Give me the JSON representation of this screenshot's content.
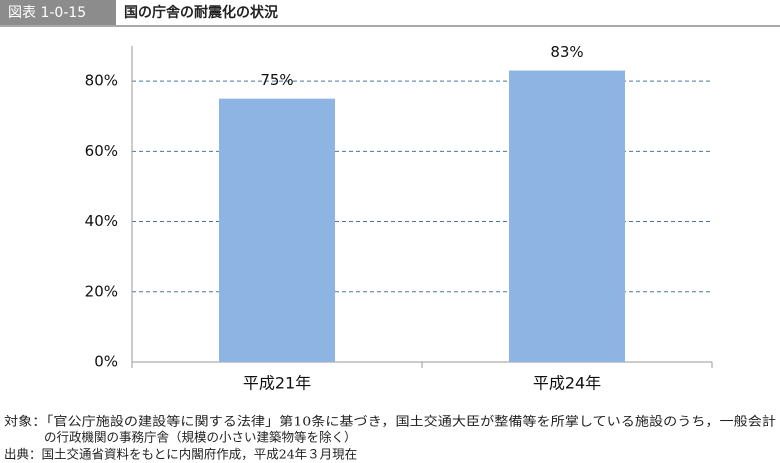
{
  "chart_data": {
    "type": "bar",
    "figure_number": "図表 1-0-15",
    "title": "国の庁舎の耐震化の状況",
    "categories": [
      "平成21年",
      "平成24年"
    ],
    "values": [
      75,
      83
    ],
    "value_labels": [
      "75%",
      "83%"
    ],
    "color": "#8eb4e3",
    "ylim": [
      0,
      90
    ],
    "yticks": [
      {
        "value": 0,
        "label": "0%"
      },
      {
        "value": 20,
        "label": "20%"
      },
      {
        "value": 40,
        "label": "40%"
      },
      {
        "value": 60,
        "label": "60%"
      },
      {
        "value": 80,
        "label": "80%"
      }
    ],
    "grid": true,
    "notes": [
      "対象：「官公庁施設の建設等に関する法律」第10条に基づき，国土交通大臣が整備等を所掌している施設のうち，一般会計",
      "の行政機関の事務庁舎（規模の小さい建築物等を除く）",
      "出典：国土交通省資料をもとに内閣府作成，平成24年３月現在"
    ]
  }
}
